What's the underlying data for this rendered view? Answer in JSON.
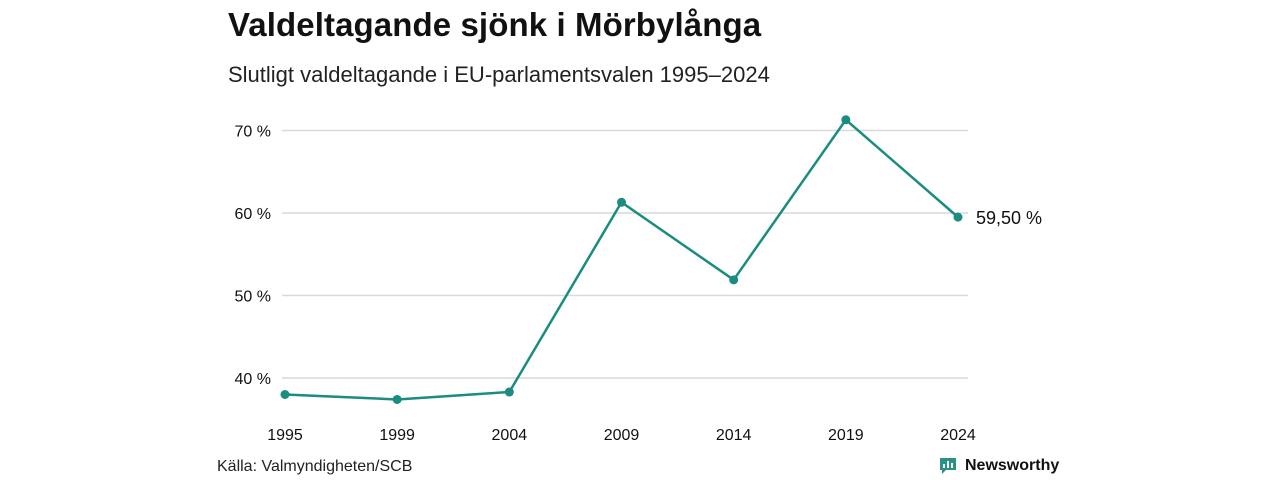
{
  "header": {
    "title": "Valdeltagande sjönk i Mörbylånga",
    "subtitle": "Slutligt valdeltagande i EU-parlamentsvalen 1995–2024"
  },
  "footer": {
    "source": "Källa: Valmyndigheten/SCB",
    "brand": "Newsworthy",
    "brand_icon": "bar-chart-logo-icon"
  },
  "colors": {
    "line": "#1a8c80",
    "grid": "#d9d9d9",
    "brand": "#2a9184"
  },
  "chart_data": {
    "type": "line",
    "title": "Valdeltagande sjönk i Mörbylånga",
    "subtitle": "Slutligt valdeltagande i EU-parlamentsvalen 1995–2024",
    "xlabel": "",
    "ylabel": "",
    "x": [
      "1995",
      "1999",
      "2004",
      "2009",
      "2014",
      "2019",
      "2024"
    ],
    "series": [
      {
        "values": [
          38.0,
          37.4,
          38.3,
          61.3,
          51.9,
          71.3,
          59.5
        ]
      }
    ],
    "yticks": [
      40,
      50,
      60,
      70
    ],
    "ytick_labels": [
      "40 %",
      "50 %",
      "60 %",
      "70 %"
    ],
    "ylim": [
      36,
      72
    ],
    "grid": true,
    "end_label": "59,50 %",
    "legend": "none"
  }
}
